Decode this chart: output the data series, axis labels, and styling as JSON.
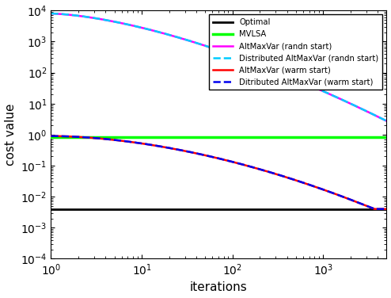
{
  "title": "",
  "xlabel": "iterations",
  "ylabel": "cost value",
  "xmax": 5000,
  "ylim": [
    0.0001,
    10000.0
  ],
  "optimal_value": 0.004,
  "mvlsa_value": 0.85,
  "lines": {
    "optimal": {
      "color": "#000000",
      "lw": 2.0,
      "ls": "-",
      "label": "Optimal"
    },
    "mvlsa": {
      "color": "#00ff00",
      "lw": 2.5,
      "ls": "-",
      "label": "MVLSA"
    },
    "altmaxvar_warm": {
      "color": "#ff0000",
      "lw": 1.8,
      "ls": "-",
      "label": "AltMaxVar (warm start)"
    },
    "dist_warm": {
      "color": "#0000ee",
      "lw": 1.8,
      "ls": "--",
      "label": "Ditributed AltMaxVar (warm start)"
    },
    "altmaxvar_rand": {
      "color": "#ff00ff",
      "lw": 1.8,
      "ls": "-",
      "label": "AltMaxVar (randn start)"
    },
    "dist_rand": {
      "color": "#00ccff",
      "lw": 1.8,
      "ls": "--",
      "label": "Distributed AltMaxVar (randn start)"
    }
  },
  "background_color": "#ffffff"
}
